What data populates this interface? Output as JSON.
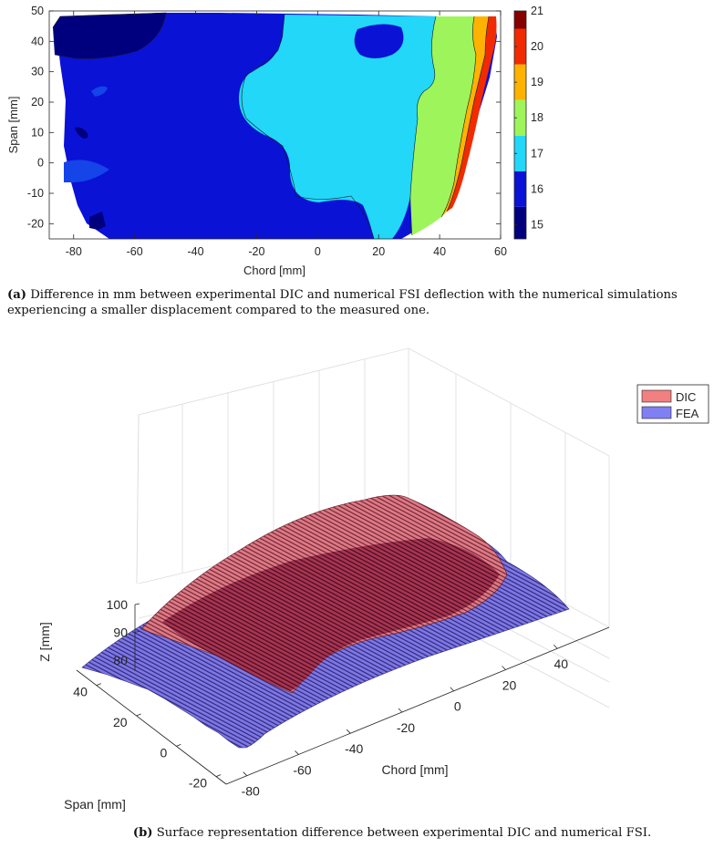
{
  "captions": {
    "a_label": "(a)",
    "a_text": "Difference in mm between experimental DIC and numerical FSI deflection with the numerical simulations experiencing a smaller displacement compared to the measured one.",
    "b_label": "(b)",
    "b_text": "Surface representation difference between experimental DIC and numerical FSI."
  },
  "chart_data": [
    {
      "type": "heatmap",
      "title": "",
      "xlabel": "Chord [mm]",
      "ylabel": "Span [mm]",
      "xlim": [
        -88,
        60
      ],
      "ylim": [
        -25,
        50
      ],
      "xticks": [
        -80,
        -60,
        -40,
        -20,
        0,
        20,
        40,
        60
      ],
      "yticks": [
        -20,
        -10,
        0,
        10,
        20,
        30,
        40,
        50
      ],
      "colorbar": {
        "ticks": [
          15,
          16,
          17,
          18,
          19,
          20,
          21
        ],
        "range": [
          14.6,
          21
        ]
      },
      "contour_levels": [
        14.6,
        15.5,
        16.5,
        17.5,
        18.5,
        19.5,
        20.5,
        21
      ],
      "level_colors": [
        "#00007f",
        "#0a12d6",
        "#22d7f7",
        "#9df55b",
        "#ffb300",
        "#f12a00",
        "#860000"
      ],
      "regions": [
        {
          "level": "17",
          "bounds": "x from about -20 to 42 mm"
        },
        {
          "level": "18",
          "bounds": "x from about 30 to 48 mm"
        },
        {
          "level": "19",
          "bounds": "x from about 46 to 54 mm"
        },
        {
          "level": "20",
          "bounds": "x from about 52 to 58 mm"
        }
      ],
      "grid": false
    },
    {
      "type": "surface3d",
      "title": "",
      "xlabel": "Chord [mm]",
      "ylabel": "Span [mm]",
      "zlabel": "Z [mm]",
      "xticks": [
        -80,
        -60,
        -40,
        -20,
        0,
        20,
        40
      ],
      "yticks": [
        -20,
        0,
        20,
        40
      ],
      "zticks": [
        80,
        90,
        100
      ],
      "series": [
        {
          "name": "DIC",
          "color": "#f28080"
        },
        {
          "name": "FEA",
          "color": "#8080f2"
        }
      ],
      "legend_position": "top-right",
      "grid": true
    }
  ]
}
